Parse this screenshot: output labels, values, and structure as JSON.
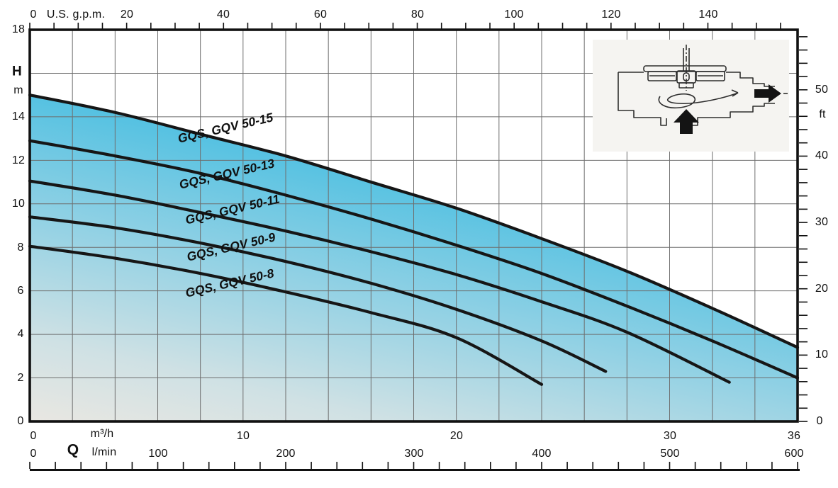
{
  "chart": {
    "top_axis_title": "U.S. g.p.m.",
    "left_axis_label": "H",
    "left_axis_unit": "m",
    "right_axis_unit": "ft",
    "bottom_axis_label": "Q",
    "bottom_unit_m3h": "m³/h",
    "bottom_unit_lmin": "l/min",
    "inset_icons": [
      "pump-cross-section-schematic",
      "inlet-arrow-up",
      "outlet-arrow-right"
    ]
  },
  "chart_data": {
    "type": "line",
    "title": "",
    "xlabel": "Q",
    "ylabel": "H",
    "x_axis_m3h": {
      "min": 0,
      "max": 36,
      "grid_step": 2,
      "labels": [
        "0",
        "10",
        "20",
        "30",
        "36"
      ]
    },
    "y_axis_m": {
      "min": 0,
      "max": 18,
      "grid_step": 2,
      "labels": [
        "18",
        "14",
        "12",
        "10",
        "8",
        "6",
        "4",
        "2",
        "0"
      ]
    },
    "top_axis_gpm": {
      "tick_step": 5,
      "label_step": 20,
      "m3h_per_gpm": 0.2271,
      "labels": [
        "0",
        "20",
        "40",
        "60",
        "80",
        "100",
        "120",
        "140"
      ]
    },
    "right_axis_ft": {
      "tick_step": 2,
      "label_step": 10,
      "m_per_ft": 0.3048,
      "labels": [
        "50",
        "40",
        "30",
        "20",
        "10",
        "0"
      ]
    },
    "bottom_axis_lmin": {
      "min": 0,
      "max": 600,
      "tick_step": 20,
      "labels": [
        "0",
        "100",
        "200",
        "300",
        "400",
        "500",
        "600"
      ]
    },
    "grid": true,
    "series": [
      {
        "name": "GQS, GQV 50-15",
        "points": [
          [
            0,
            15.0
          ],
          [
            4,
            14.2
          ],
          [
            8,
            13.2
          ],
          [
            12,
            12.2
          ],
          [
            16,
            11.0
          ],
          [
            20,
            9.8
          ],
          [
            24,
            8.4
          ],
          [
            28,
            6.9
          ],
          [
            32,
            5.2
          ],
          [
            36,
            3.4
          ]
        ]
      },
      {
        "name": "GQS, GQV 50-13",
        "points": [
          [
            0,
            12.9
          ],
          [
            4,
            12.2
          ],
          [
            8,
            11.4
          ],
          [
            12,
            10.4
          ],
          [
            16,
            9.3
          ],
          [
            20,
            8.1
          ],
          [
            24,
            6.8
          ],
          [
            28,
            5.3
          ],
          [
            32,
            3.7
          ],
          [
            36,
            2.0
          ]
        ]
      },
      {
        "name": "GQS, GQV 50-11",
        "points": [
          [
            0,
            11.05
          ],
          [
            4,
            10.4
          ],
          [
            8,
            9.6
          ],
          [
            12,
            8.75
          ],
          [
            16,
            7.8
          ],
          [
            20,
            6.75
          ],
          [
            24,
            5.5
          ],
          [
            28,
            4.1
          ],
          [
            32.8,
            1.8
          ]
        ]
      },
      {
        "name": "GQS, GQV 50-9",
        "points": [
          [
            0,
            9.4
          ],
          [
            4,
            8.9
          ],
          [
            8,
            8.2
          ],
          [
            12,
            7.35
          ],
          [
            16,
            6.35
          ],
          [
            20,
            5.15
          ],
          [
            24,
            3.7
          ],
          [
            27,
            2.3
          ]
        ]
      },
      {
        "name": "GQS, GQV 50-8",
        "points": [
          [
            0,
            8.05
          ],
          [
            4,
            7.5
          ],
          [
            8,
            6.8
          ],
          [
            12,
            5.95
          ],
          [
            16,
            5.0
          ],
          [
            20,
            3.85
          ],
          [
            24,
            1.7
          ]
        ]
      }
    ],
    "fill": {
      "under_series": "GQS, GQV 50-15",
      "gradient_stops": [
        "#e9e7e2",
        "#cfe1e4",
        "#99d3e4",
        "#4fc0e2",
        "#44bce2"
      ]
    },
    "curve_color": "#161616",
    "grid_color": "#6e6e6e"
  }
}
